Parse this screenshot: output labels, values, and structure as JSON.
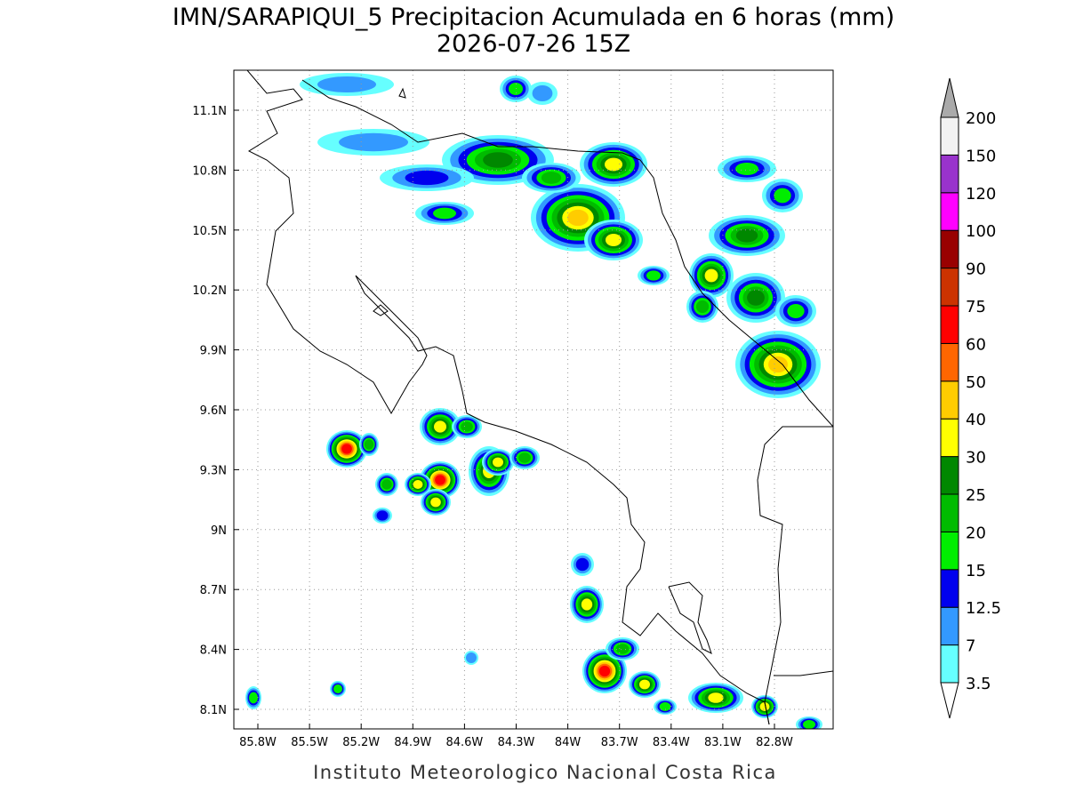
{
  "title": "IMN/SARAPIQUI_5 Precipitacion Acumulada en 6 horas (mm)",
  "subtitle": "2026-07-26 15Z",
  "footer": "Instituto Meteorologico Nacional Costa Rica",
  "lon_ticks": [
    "85.8W",
    "85.5W",
    "85.2W",
    "84.9W",
    "84.6W",
    "84.3W",
    "84W",
    "83.7W",
    "83.4W",
    "83.1W",
    "82.8W"
  ],
  "lat_ticks": [
    "11.1N",
    "10.8N",
    "10.5N",
    "10.2N",
    "9.9N",
    "9.6N",
    "9.3N",
    "9N",
    "8.7N",
    "8.4N",
    "8.1N"
  ],
  "colorbar": {
    "levels": [
      3.5,
      7,
      12.5,
      15,
      20,
      25,
      30,
      40,
      50,
      60,
      75,
      90,
      100,
      120,
      150,
      200
    ],
    "colors": [
      "#66ffff",
      "#3399ff",
      "#0000ee",
      "#00ee00",
      "#00bb00",
      "#008800",
      "#ffff00",
      "#ffcc00",
      "#ff6600",
      "#ff0000",
      "#cc3300",
      "#990000",
      "#ff00ff",
      "#9933cc",
      "#f2f2f2"
    ],
    "over_color": "#aaaaaa",
    "under_color": "#ffffff"
  }
}
